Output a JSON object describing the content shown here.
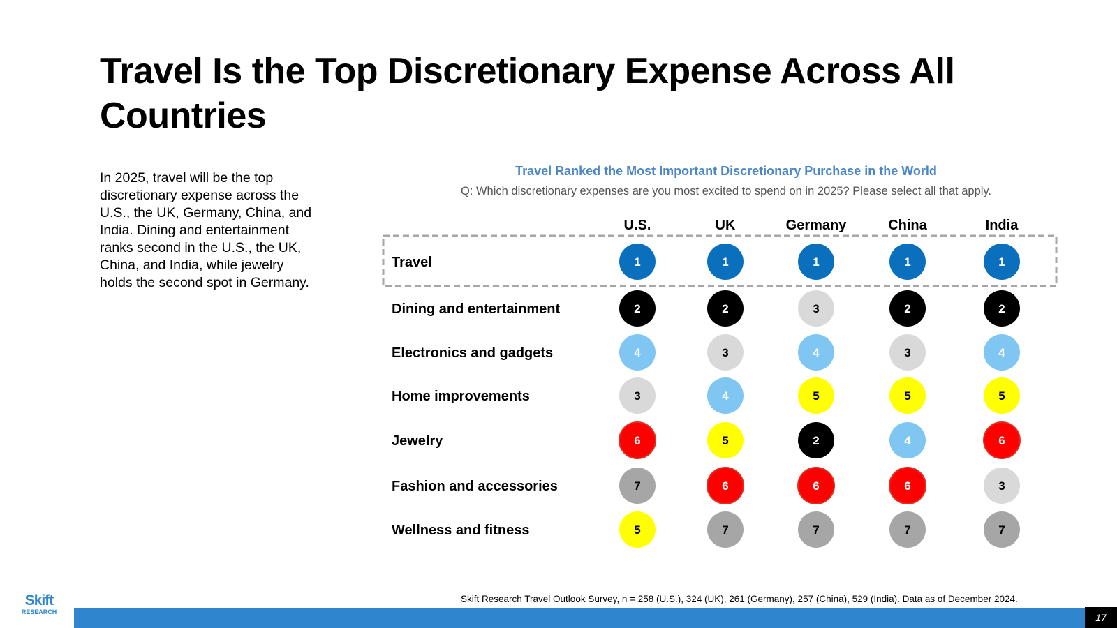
{
  "slide": {
    "title": "Travel Is the Top Discretionary Expense Across All Countries",
    "body": "In 2025, travel will be the top discretionary expense across the U.S., the UK, Germany, China, and India. Dining and entertainment ranks second in the U.S., the UK, China, and India, while jewelry holds the second spot in Germany.",
    "source": "Skift Research Travel Outlook Survey, n = 258 (U.S.), 324 (UK), 261 (Germany), 257 (China), 529 (India). Data as of December  2024.",
    "page_number": "17",
    "logo": {
      "line1": "Skift",
      "line2": "RESEARCH"
    }
  },
  "chart_data": {
    "type": "table",
    "title": "Travel Ranked the Most Important Discretionary Purchase in the World",
    "subtitle": "Q: Which discretionary expenses are you most excited to spend on in 2025? Please select all that apply.",
    "columns": [
      "U.S.",
      "UK",
      "Germany",
      "China",
      "India"
    ],
    "rows": [
      {
        "label": "Travel",
        "ranks": [
          1,
          1,
          1,
          1,
          1
        ]
      },
      {
        "label": "Dining and entertainment",
        "ranks": [
          2,
          2,
          3,
          2,
          2
        ]
      },
      {
        "label": "Electronics and gadgets",
        "ranks": [
          4,
          3,
          4,
          3,
          4
        ]
      },
      {
        "label": "Home improvements",
        "ranks": [
          3,
          4,
          5,
          5,
          5
        ]
      },
      {
        "label": "Jewelry",
        "ranks": [
          6,
          5,
          2,
          4,
          6
        ]
      },
      {
        "label": "Fashion and accessories",
        "ranks": [
          7,
          6,
          6,
          6,
          3
        ]
      },
      {
        "label": "Wellness and fitness",
        "ranks": [
          5,
          7,
          7,
          7,
          7
        ]
      }
    ],
    "highlighted_row": "Travel",
    "rank_colors": {
      "1": {
        "fill": "#0a6fbd",
        "text": "#ffffff"
      },
      "2": {
        "fill": "#000000",
        "text": "#ffffff"
      },
      "3": {
        "fill": "#d9d9d9",
        "text": "#000000"
      },
      "4": {
        "fill": "#7fc6f2",
        "text": "#ffffff"
      },
      "5": {
        "fill": "#ffff00",
        "text": "#000000"
      },
      "6": {
        "fill": "#ff0000",
        "text": "#ffffff"
      },
      "7": {
        "fill": "#a6a6a6",
        "text": "#000000"
      }
    }
  }
}
